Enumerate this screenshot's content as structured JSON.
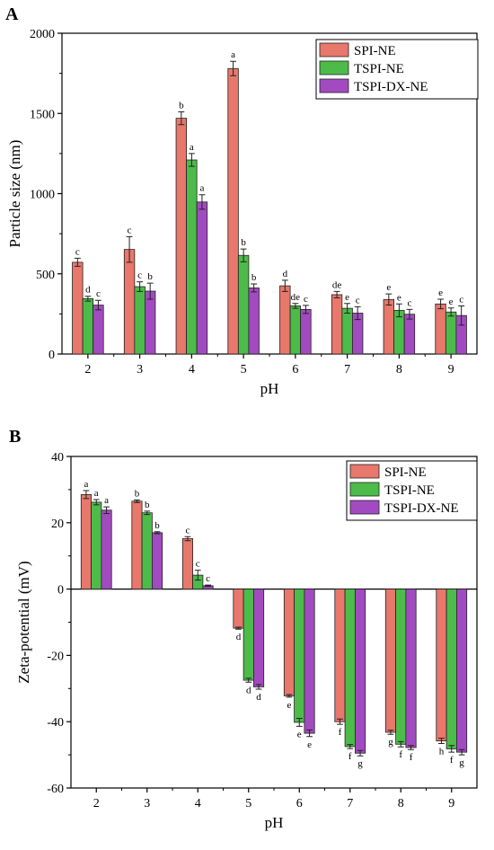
{
  "series_colors": [
    "#e8776c",
    "#4cbb4a",
    "#a24bc0"
  ],
  "chart_data": [
    {
      "panel": "A",
      "type": "bar",
      "categories": [
        "2",
        "3",
        "4",
        "5",
        "6",
        "7",
        "8",
        "9"
      ],
      "xlabel": "pH",
      "ylabel": "Particle size (nm)",
      "ylim": [
        0,
        2000
      ],
      "yticks": [
        "0",
        "500",
        "1000",
        "1500",
        "2000"
      ],
      "legend_position": "top-right",
      "series": [
        {
          "name": "SPI-NE",
          "values": [
            572,
            652,
            1470,
            1780,
            425,
            370,
            340,
            312
          ],
          "errors": [
            25,
            80,
            40,
            45,
            35,
            20,
            35,
            30
          ],
          "labels": [
            "c",
            "c",
            "b",
            "a",
            "d",
            "de",
            "e",
            "e"
          ]
        },
        {
          "name": "TSPI-NE",
          "values": [
            345,
            420,
            1210,
            615,
            300,
            285,
            272,
            262
          ],
          "errors": [
            15,
            30,
            40,
            40,
            15,
            30,
            40,
            25
          ],
          "labels": [
            "d",
            "c",
            "a",
            "b",
            "de",
            "e",
            "e",
            "e"
          ]
        },
        {
          "name": "TSPI-DX-NE",
          "values": [
            305,
            392,
            948,
            412,
            278,
            255,
            248,
            240
          ],
          "errors": [
            30,
            50,
            45,
            25,
            25,
            40,
            30,
            60
          ],
          "labels": [
            "c",
            "b",
            "a",
            "b",
            "c",
            "c",
            "c",
            "c"
          ]
        }
      ]
    },
    {
      "panel": "B",
      "type": "bar",
      "categories": [
        "2",
        "3",
        "4",
        "5",
        "6",
        "7",
        "8",
        "9"
      ],
      "xlabel": "pH",
      "ylabel": "Zeta-potential (mV)",
      "ylim": [
        -60,
        40
      ],
      "yticks": [
        "-60",
        "-40",
        "-20",
        "0",
        "20",
        "40"
      ],
      "legend_position": "top-right",
      "series": [
        {
          "name": "SPI-NE",
          "values": [
            28.5,
            26.5,
            15.2,
            -11.8,
            -32.2,
            -40.0,
            -43.2,
            -45.8
          ],
          "errors": [
            1.2,
            0.4,
            0.6,
            0.3,
            0.4,
            0.8,
            0.6,
            0.8
          ],
          "labels": [
            "a",
            "b",
            "c",
            "d",
            "e",
            "f",
            "g",
            "h"
          ]
        },
        {
          "name": "TSPI-NE",
          "values": [
            26.2,
            23.0,
            4.2,
            -27.5,
            -40.2,
            -47.5,
            -46.8,
            -48.2
          ],
          "errors": [
            0.8,
            0.5,
            1.5,
            0.6,
            1.2,
            0.6,
            0.8,
            1.0
          ],
          "labels": [
            "a",
            "b",
            "c",
            "d",
            "e",
            "f",
            "f",
            "f"
          ]
        },
        {
          "name": "TSPI-DX-NE",
          "values": [
            23.8,
            17.0,
            1.0,
            -29.5,
            -43.5,
            -49.5,
            -47.8,
            -49.2
          ],
          "errors": [
            1.0,
            0.3,
            0.2,
            0.7,
            1.0,
            0.8,
            0.6,
            0.8
          ],
          "labels": [
            "a",
            "b",
            "c",
            "d",
            "e",
            "g",
            "f",
            "g"
          ]
        }
      ]
    }
  ]
}
